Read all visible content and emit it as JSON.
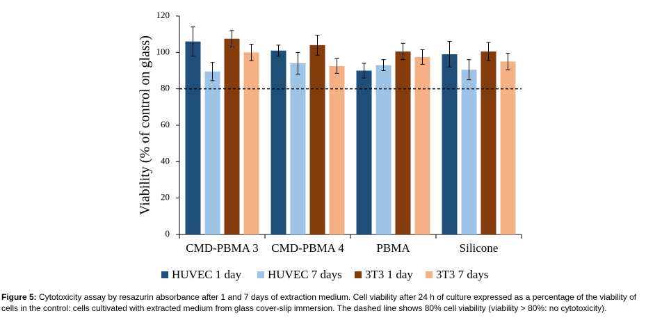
{
  "chart_data": {
    "type": "bar",
    "y_label": "Viability (% of control on glass)",
    "categories": [
      "CMD-PBMA 3",
      "CMD-PBMA 4",
      "PBMA",
      "Silicone"
    ],
    "series": [
      {
        "name": "HUVEC 1 day",
        "color": "#1f4e79",
        "values": [
          106,
          101,
          90,
          99
        ],
        "errors": [
          8,
          3,
          4,
          7
        ]
      },
      {
        "name": "HUVEC 7 days",
        "color": "#9dc3e6",
        "values": [
          89.5,
          94,
          93,
          90.5
        ],
        "errors": [
          5,
          6,
          3,
          5.5
        ]
      },
      {
        "name": "3T3 1 day",
        "color": "#843c0c",
        "values": [
          107.5,
          104,
          100.5,
          100.5
        ],
        "errors": [
          4.5,
          5.5,
          4.5,
          5
        ]
      },
      {
        "name": "3T3 7 days",
        "color": "#f4b183",
        "values": [
          100,
          92.5,
          97.5,
          95
        ],
        "errors": [
          4.5,
          4,
          4,
          4.5
        ]
      }
    ],
    "ylim": [
      0,
      120
    ],
    "yticks": [
      0,
      20,
      40,
      60,
      80,
      100,
      120
    ],
    "reference_line": 80,
    "legend": "bottom"
  },
  "caption": {
    "label": "Figure 5:",
    "text": "Cytotoxicity assay by resazurin absorbance after 1 and 7 days of extraction medium. Cell viability after 24 h of culture expressed as a percentage of the viability of cells in the control: cells cultivated with extracted medium from glass cover-slip immersion. The dashed line shows 80% cell viability (viability > 80%: no cytotoxicity)."
  }
}
